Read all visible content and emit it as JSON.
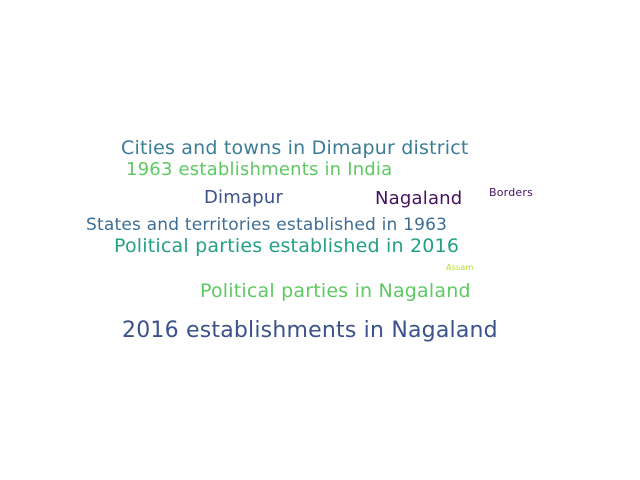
{
  "words": [
    {
      "id": "w-cities",
      "text": "Cities and towns in Dimapur district",
      "color": "#3b7c96"
    },
    {
      "id": "w-1963-india",
      "text": "1963 establishments in India",
      "color": "#5ec962"
    },
    {
      "id": "w-dimapur",
      "text": "Dimapur",
      "color": "#3b528b"
    },
    {
      "id": "w-nagaland",
      "text": "Nagaland",
      "color": "#46115f"
    },
    {
      "id": "w-borders",
      "text": "Borders",
      "color": "#46115f"
    },
    {
      "id": "w-states",
      "text": "States and territories established in 1963",
      "color": "#3e6d94"
    },
    {
      "id": "w-pp-2016",
      "text": "Political parties established in 2016",
      "color": "#24a085"
    },
    {
      "id": "w-assam",
      "text": "Assam",
      "color": "#b5de2b"
    },
    {
      "id": "w-pp-nagaland",
      "text": "Political parties in Nagaland",
      "color": "#5ec962"
    },
    {
      "id": "w-2016-nagaland",
      "text": "2016 establishments in Nagaland",
      "color": "#3b528b"
    }
  ]
}
